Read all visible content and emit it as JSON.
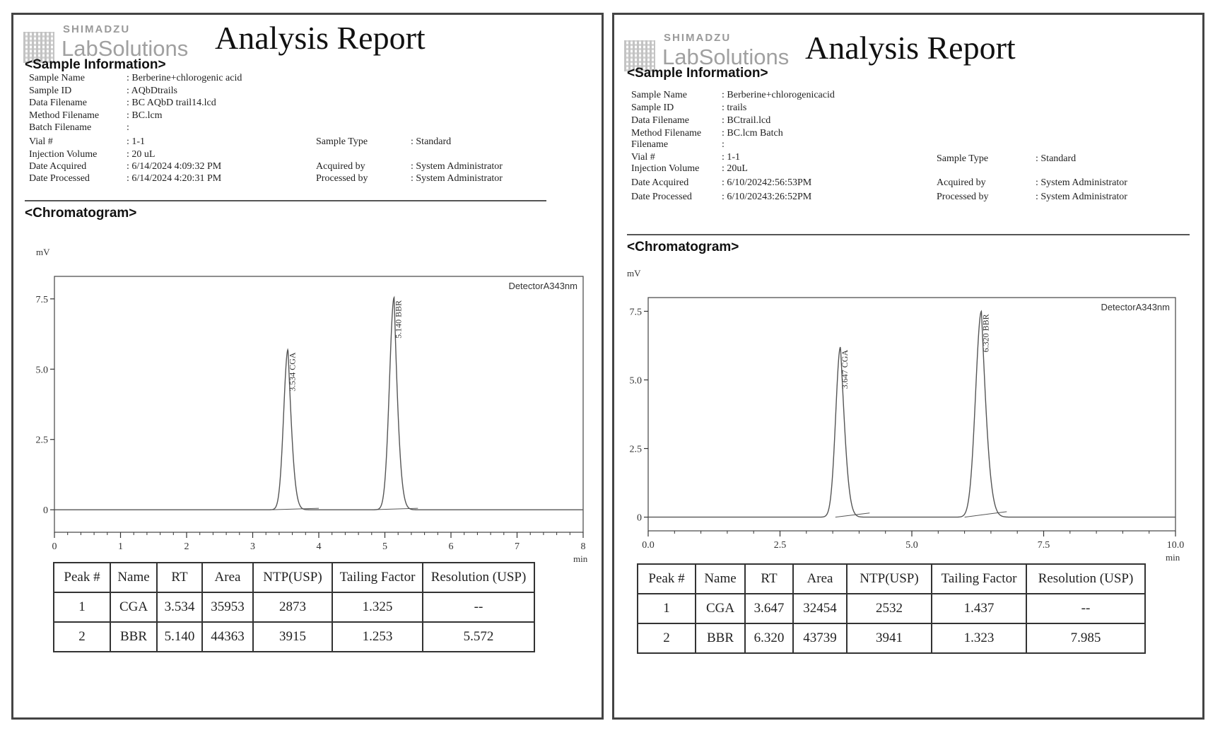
{
  "reports": [
    {
      "logo": {
        "brand": "SHIMADZU",
        "product": "LabSolutions"
      },
      "title": "Analysis Report",
      "sample_section": "<Sample Information>",
      "fields": [
        {
          "label": "Sample Name",
          "value": ": Berberine+chlorogenic acid"
        },
        {
          "label": "Sample ID",
          "value": ": AQbDtrails"
        },
        {
          "label": "Data Filename",
          "value": ": BC AQbD trail14.lcd"
        },
        {
          "label": "Method Filename",
          "value": ": BC.lcm"
        },
        {
          "label": "Batch Filename",
          "value": ":"
        },
        {
          "label": "Vial #",
          "value": ": 1-1"
        },
        {
          "label": "Injection Volume",
          "value": ": 20 uL"
        },
        {
          "label": "Date Acquired",
          "value": ": 6/14/2024 4:09:32 PM"
        },
        {
          "label": "Date Processed",
          "value": ": 6/14/2024 4:20:31 PM"
        },
        {
          "label": "Sample Type",
          "value": ": Standard"
        },
        {
          "label": "Acquired by",
          "value": ": System Administrator"
        },
        {
          "label": "Processed by",
          "value": ": System Administrator"
        }
      ],
      "chromatogram_section": "<Chromatogram>",
      "table": {
        "headers": [
          "Peak #",
          "Name",
          "RT",
          "Area",
          "NTP(USP)",
          "Tailing Factor",
          "Resolution (USP)"
        ],
        "rows": [
          [
            "1",
            "CGA",
            "3.534",
            "35953",
            "2873",
            "1.325",
            "--"
          ],
          [
            "2",
            "BBR",
            "5.140",
            "44363",
            "3915",
            "1.253",
            "5.572"
          ]
        ]
      }
    },
    {
      "logo": {
        "brand": "SHIMADZU",
        "product": "LabSolutions"
      },
      "title": "Analysis Report",
      "sample_section": "<Sample Information>",
      "fields": [
        {
          "label": "Sample Name",
          "value": ": Berberine+chlorogenicacid"
        },
        {
          "label": "Sample ID",
          "value": ": trails"
        },
        {
          "label": "Data Filename",
          "value": ": BCtrail.lcd"
        },
        {
          "label": "Method Filename",
          "value": ": BC.lcm Batch"
        },
        {
          "label": "Filename",
          "value": ":"
        },
        {
          "label": "Vial #",
          "value": ": 1-1"
        },
        {
          "label": "Injection Volume",
          "value": ": 20uL"
        },
        {
          "label": "Date Acquired",
          "value": ": 6/10/20242:56:53PM"
        },
        {
          "label": "Date Processed",
          "value": ": 6/10/20243:26:52PM"
        },
        {
          "label": "Sample Type",
          "value": ": Standard"
        },
        {
          "label": "Acquired by",
          "value": ": System Administrator"
        },
        {
          "label": "Processed by",
          "value": ": System Administrator"
        }
      ],
      "chromatogram_section": "<Chromatogram>",
      "table": {
        "headers": [
          "Peak #",
          "Name",
          "RT",
          "Area",
          "NTP(USP)",
          "Tailing Factor",
          "Resolution (USP)"
        ],
        "rows": [
          [
            "1",
            "CGA",
            "3.647",
            "32454",
            "2532",
            "1.437",
            "--"
          ],
          [
            "2",
            "BBR",
            "6.320",
            "43739",
            "3941",
            "1.323",
            "7.985"
          ]
        ]
      }
    }
  ],
  "chart_data": [
    {
      "type": "line",
      "ylabel": "mV",
      "xlabel": "min",
      "detector": "DetectorA343nm",
      "xlim": [
        0,
        8
      ],
      "ylim": [
        -0.8,
        8.3
      ],
      "xticks": [
        0,
        1,
        2,
        3,
        4,
        5,
        6,
        7,
        8
      ],
      "xtick_labels": [
        "0",
        "1",
        "2",
        "3",
        "4",
        "5",
        "6",
        "7",
        "8"
      ],
      "yticks": [
        0,
        2.5,
        5.0,
        7.5
      ],
      "ytick_labels": [
        "0",
        "2.5",
        "5.0",
        "7.5"
      ],
      "series": [
        {
          "peaks": [
            {
              "label": "3.534 CGA",
              "rt": 3.534,
              "height": 5.7,
              "sigma": 0.065,
              "tail": 0.11
            },
            {
              "label": "5.140 BBR",
              "rt": 5.14,
              "height": 7.55,
              "sigma": 0.07,
              "tail": 0.1
            }
          ]
        }
      ],
      "baseline_segments": [
        [
          3.3,
          0.0,
          4.0,
          0.05
        ],
        [
          4.8,
          0.0,
          5.5,
          0.05
        ]
      ],
      "tick_color": "#333333",
      "line_color": "#555555"
    },
    {
      "type": "line",
      "ylabel": "mV",
      "xlabel": "min",
      "detector": "DetectorA343nm",
      "xlim": [
        0,
        10
      ],
      "ylim": [
        -0.5,
        8.0
      ],
      "xticks": [
        0,
        2.5,
        5.0,
        7.5,
        10.0
      ],
      "xtick_labels": [
        "0.0",
        "2.5",
        "5.0",
        "7.5",
        "10.0"
      ],
      "yticks": [
        0,
        2.5,
        5.0,
        7.5
      ],
      "ytick_labels": [
        "0",
        "2.5",
        "5.0",
        "7.5"
      ],
      "series": [
        {
          "peaks": [
            {
              "label": "3.647 CGA",
              "rt": 3.647,
              "height": 6.2,
              "sigma": 0.09,
              "tail": 0.18
            },
            {
              "label": "6.320 BBR",
              "rt": 6.32,
              "height": 7.5,
              "sigma": 0.11,
              "tail": 0.18
            }
          ]
        }
      ],
      "baseline_segments": [
        [
          3.55,
          0.0,
          4.2,
          0.15
        ],
        [
          6.0,
          0.0,
          6.8,
          0.2
        ]
      ],
      "tick_color": "#333333",
      "line_color": "#555555"
    }
  ]
}
